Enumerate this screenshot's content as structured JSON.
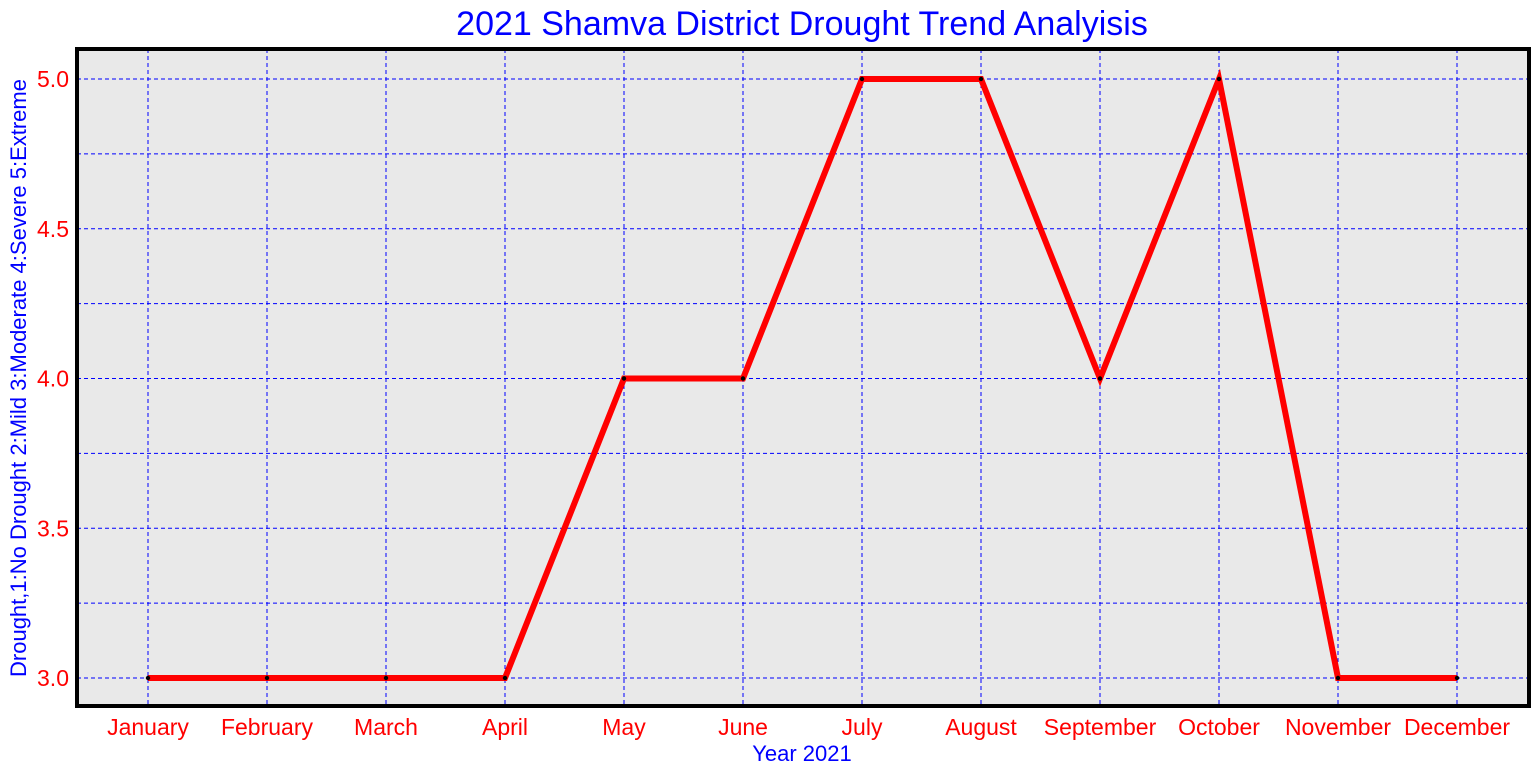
{
  "chart_data": {
    "type": "line",
    "title": "2021 Shamva District Drought Trend Analyisis",
    "xlabel": "Year 2021",
    "ylabel": "Drought,1:No Drought 2:Mild 3:Moderate 4:Severe 5:Extreme",
    "categories": [
      "January",
      "February",
      "March",
      "April",
      "May",
      "June",
      "July",
      "August",
      "September",
      "October",
      "November",
      "December"
    ],
    "series": [
      {
        "values": [
          3.0,
          3.0,
          3.0,
          3.0,
          4.0,
          4.0,
          5.0,
          5.0,
          4.0,
          5.0,
          3.0,
          3.0
        ]
      }
    ],
    "yticks": [
      "3.0",
      "3.5",
      "4.0",
      "4.5",
      "5.0"
    ],
    "ylim": [
      2.9,
      5.1
    ],
    "grid": true,
    "colors": {
      "line": "#ff0000",
      "grid": "#0000ff",
      "plot_background": "#e9e9e9",
      "frame": "#000000",
      "title": "#0000ff",
      "tick_labels": "#ff0000"
    }
  }
}
